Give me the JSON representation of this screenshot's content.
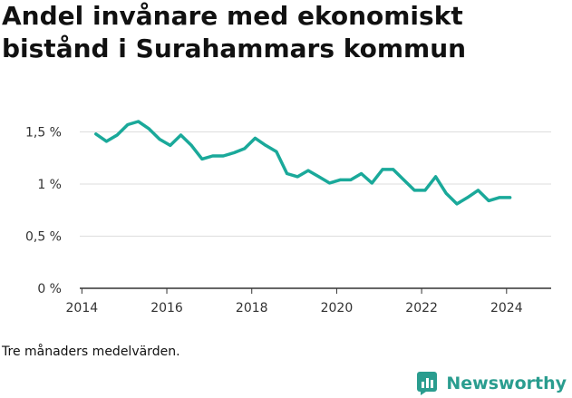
{
  "title": "Andel invånare med ekonomiskt bistånd i Surahammars kommun",
  "note": "Tre månaders medelvärden.",
  "brand": {
    "name": "Newsworthy",
    "icon": "bar-chart-logo-icon",
    "color": "#2a9d8f"
  },
  "colors": {
    "line": "#1aa99a",
    "grid": "#dddddd",
    "axis": "#333333",
    "text": "#333333"
  },
  "chart_data": {
    "type": "line",
    "title": "Andel invånare med ekonomiskt bistånd i Surahammars kommun",
    "xlabel": "",
    "ylabel": "",
    "xlim": [
      2013.95,
      2025.05
    ],
    "ylim": [
      0,
      1.6
    ],
    "x_ticks": [
      2014,
      2016,
      2018,
      2020,
      2022,
      2024
    ],
    "y_ticks": [
      0,
      0.5,
      1,
      1.5
    ],
    "y_tick_labels": [
      "0 %",
      "0,5 %",
      "1 %",
      "1,5 %"
    ],
    "grid": "horizontal",
    "legend": "none",
    "series": [
      {
        "x": [
          2014.33,
          2014.58,
          2014.83,
          2015.08,
          2015.33,
          2015.58,
          2015.83,
          2016.08,
          2016.33,
          2016.58,
          2016.83,
          2017.08,
          2017.33,
          2017.58,
          2017.83,
          2018.08,
          2018.33,
          2018.58,
          2018.83,
          2019.08,
          2019.33,
          2019.58,
          2019.83,
          2020.08,
          2020.33,
          2020.58,
          2020.83,
          2021.08,
          2021.33,
          2021.58,
          2021.83,
          2022.08,
          2022.33,
          2022.58,
          2022.83,
          2023.08,
          2023.33,
          2023.58,
          2023.83,
          2024.08
        ],
        "values": [
          1.48,
          1.41,
          1.47,
          1.57,
          1.6,
          1.53,
          1.43,
          1.37,
          1.47,
          1.37,
          1.24,
          1.27,
          1.27,
          1.3,
          1.34,
          1.44,
          1.37,
          1.31,
          1.1,
          1.07,
          1.13,
          1.07,
          1.01,
          1.04,
          1.04,
          1.1,
          1.01,
          1.14,
          1.14,
          1.04,
          0.94,
          0.94,
          1.07,
          0.91,
          0.81,
          0.87,
          0.94,
          0.84,
          0.87,
          0.87
        ]
      }
    ]
  }
}
